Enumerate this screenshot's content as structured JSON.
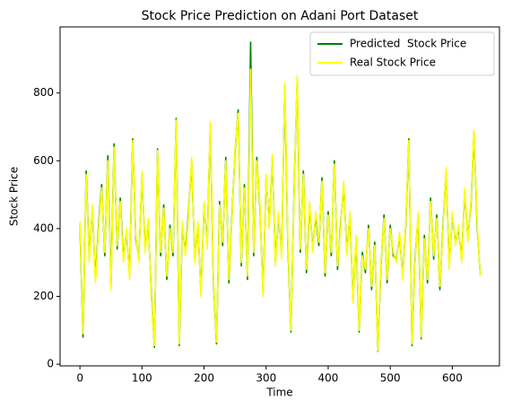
{
  "chart_data": {
    "type": "line",
    "title": "Stock Price Prediction on Adani Port Dataset",
    "xlabel": "Time",
    "ylabel": "Stock Price",
    "xlim": [
      -32,
      676
    ],
    "xticks": [
      0,
      100,
      200,
      300,
      400,
      500,
      600
    ],
    "ylim": [
      -5,
      995
    ],
    "yticks": [
      0,
      200,
      400,
      600,
      800
    ],
    "legend": "upper right",
    "x": [
      0,
      5,
      10,
      15,
      20,
      25,
      30,
      35,
      40,
      45,
      50,
      55,
      60,
      65,
      70,
      75,
      80,
      85,
      90,
      95,
      100,
      105,
      110,
      115,
      120,
      125,
      130,
      135,
      140,
      145,
      150,
      155,
      160,
      165,
      170,
      175,
      180,
      185,
      190,
      195,
      200,
      205,
      210,
      215,
      220,
      225,
      230,
      235,
      240,
      245,
      250,
      255,
      260,
      265,
      270,
      275,
      280,
      285,
      290,
      295,
      300,
      305,
      310,
      315,
      320,
      325,
      330,
      335,
      340,
      345,
      350,
      355,
      360,
      365,
      370,
      375,
      380,
      385,
      390,
      395,
      400,
      405,
      410,
      415,
      420,
      425,
      430,
      435,
      440,
      445,
      450,
      455,
      460,
      465,
      470,
      475,
      480,
      485,
      490,
      495,
      500,
      505,
      510,
      515,
      520,
      525,
      530,
      535,
      540,
      545,
      550,
      555,
      560,
      565,
      570,
      575,
      580,
      585,
      590,
      595,
      600,
      605,
      610,
      615,
      620,
      625,
      630,
      635,
      640,
      645
    ],
    "series": [
      {
        "name": "Predicted  Stock Price",
        "color": "#008000",
        "values": [
          410,
          80,
          570,
          310,
          460,
          250,
          410,
          530,
          320,
          615,
          230,
          650,
          340,
          490,
          310,
          390,
          260,
          665,
          370,
          310,
          560,
          340,
          420,
          210,
          50,
          635,
          320,
          470,
          250,
          410,
          320,
          725,
          55,
          410,
          330,
          450,
          600,
          310,
          410,
          210,
          470,
          350,
          705,
          250,
          60,
          480,
          350,
          610,
          240,
          440,
          630,
          750,
          290,
          530,
          250,
          950,
          320,
          610,
          460,
          210,
          550,
          410,
          610,
          300,
          440,
          320,
          820,
          350,
          95,
          510,
          840,
          330,
          570,
          270,
          470,
          340,
          440,
          350,
          550,
          260,
          450,
          320,
          600,
          280,
          410,
          530,
          330,
          440,
          190,
          370,
          95,
          330,
          270,
          410,
          220,
          360,
          38,
          290,
          440,
          240,
          410,
          320,
          310,
          380,
          260,
          410,
          665,
          55,
          310,
          440,
          75,
          380,
          240,
          490,
          310,
          440,
          220,
          410,
          570,
          290,
          440,
          360,
          400,
          310,
          510,
          370,
          470,
          685,
          410,
          265
        ]
      },
      {
        "name": "Real Stock Price",
        "color": "#ffff00",
        "values": [
          420,
          90,
          560,
          300,
          470,
          240,
          400,
          520,
          330,
          600,
          220,
          640,
          350,
          480,
          300,
          400,
          250,
          660,
          380,
          300,
          570,
          330,
          430,
          200,
          55,
          630,
          330,
          460,
          260,
          400,
          330,
          720,
          60,
          420,
          320,
          440,
          610,
          300,
          420,
          200,
          480,
          340,
          715,
          260,
          65,
          470,
          360,
          600,
          250,
          430,
          640,
          740,
          300,
          520,
          260,
          870,
          330,
          600,
          470,
          200,
          560,
          400,
          620,
          290,
          450,
          310,
          830,
          360,
          100,
          500,
          850,
          340,
          560,
          280,
          480,
          330,
          450,
          360,
          540,
          270,
          440,
          330,
          590,
          290,
          400,
          540,
          320,
          450,
          180,
          380,
          100,
          320,
          280,
          400,
          230,
          350,
          40,
          300,
          430,
          250,
          400,
          330,
          300,
          390,
          250,
          420,
          660,
          60,
          300,
          450,
          80,
          370,
          250,
          480,
          320,
          430,
          230,
          400,
          580,
          280,
          450,
          350,
          410,
          300,
          520,
          360,
          480,
          690,
          420,
          260
        ]
      }
    ]
  }
}
